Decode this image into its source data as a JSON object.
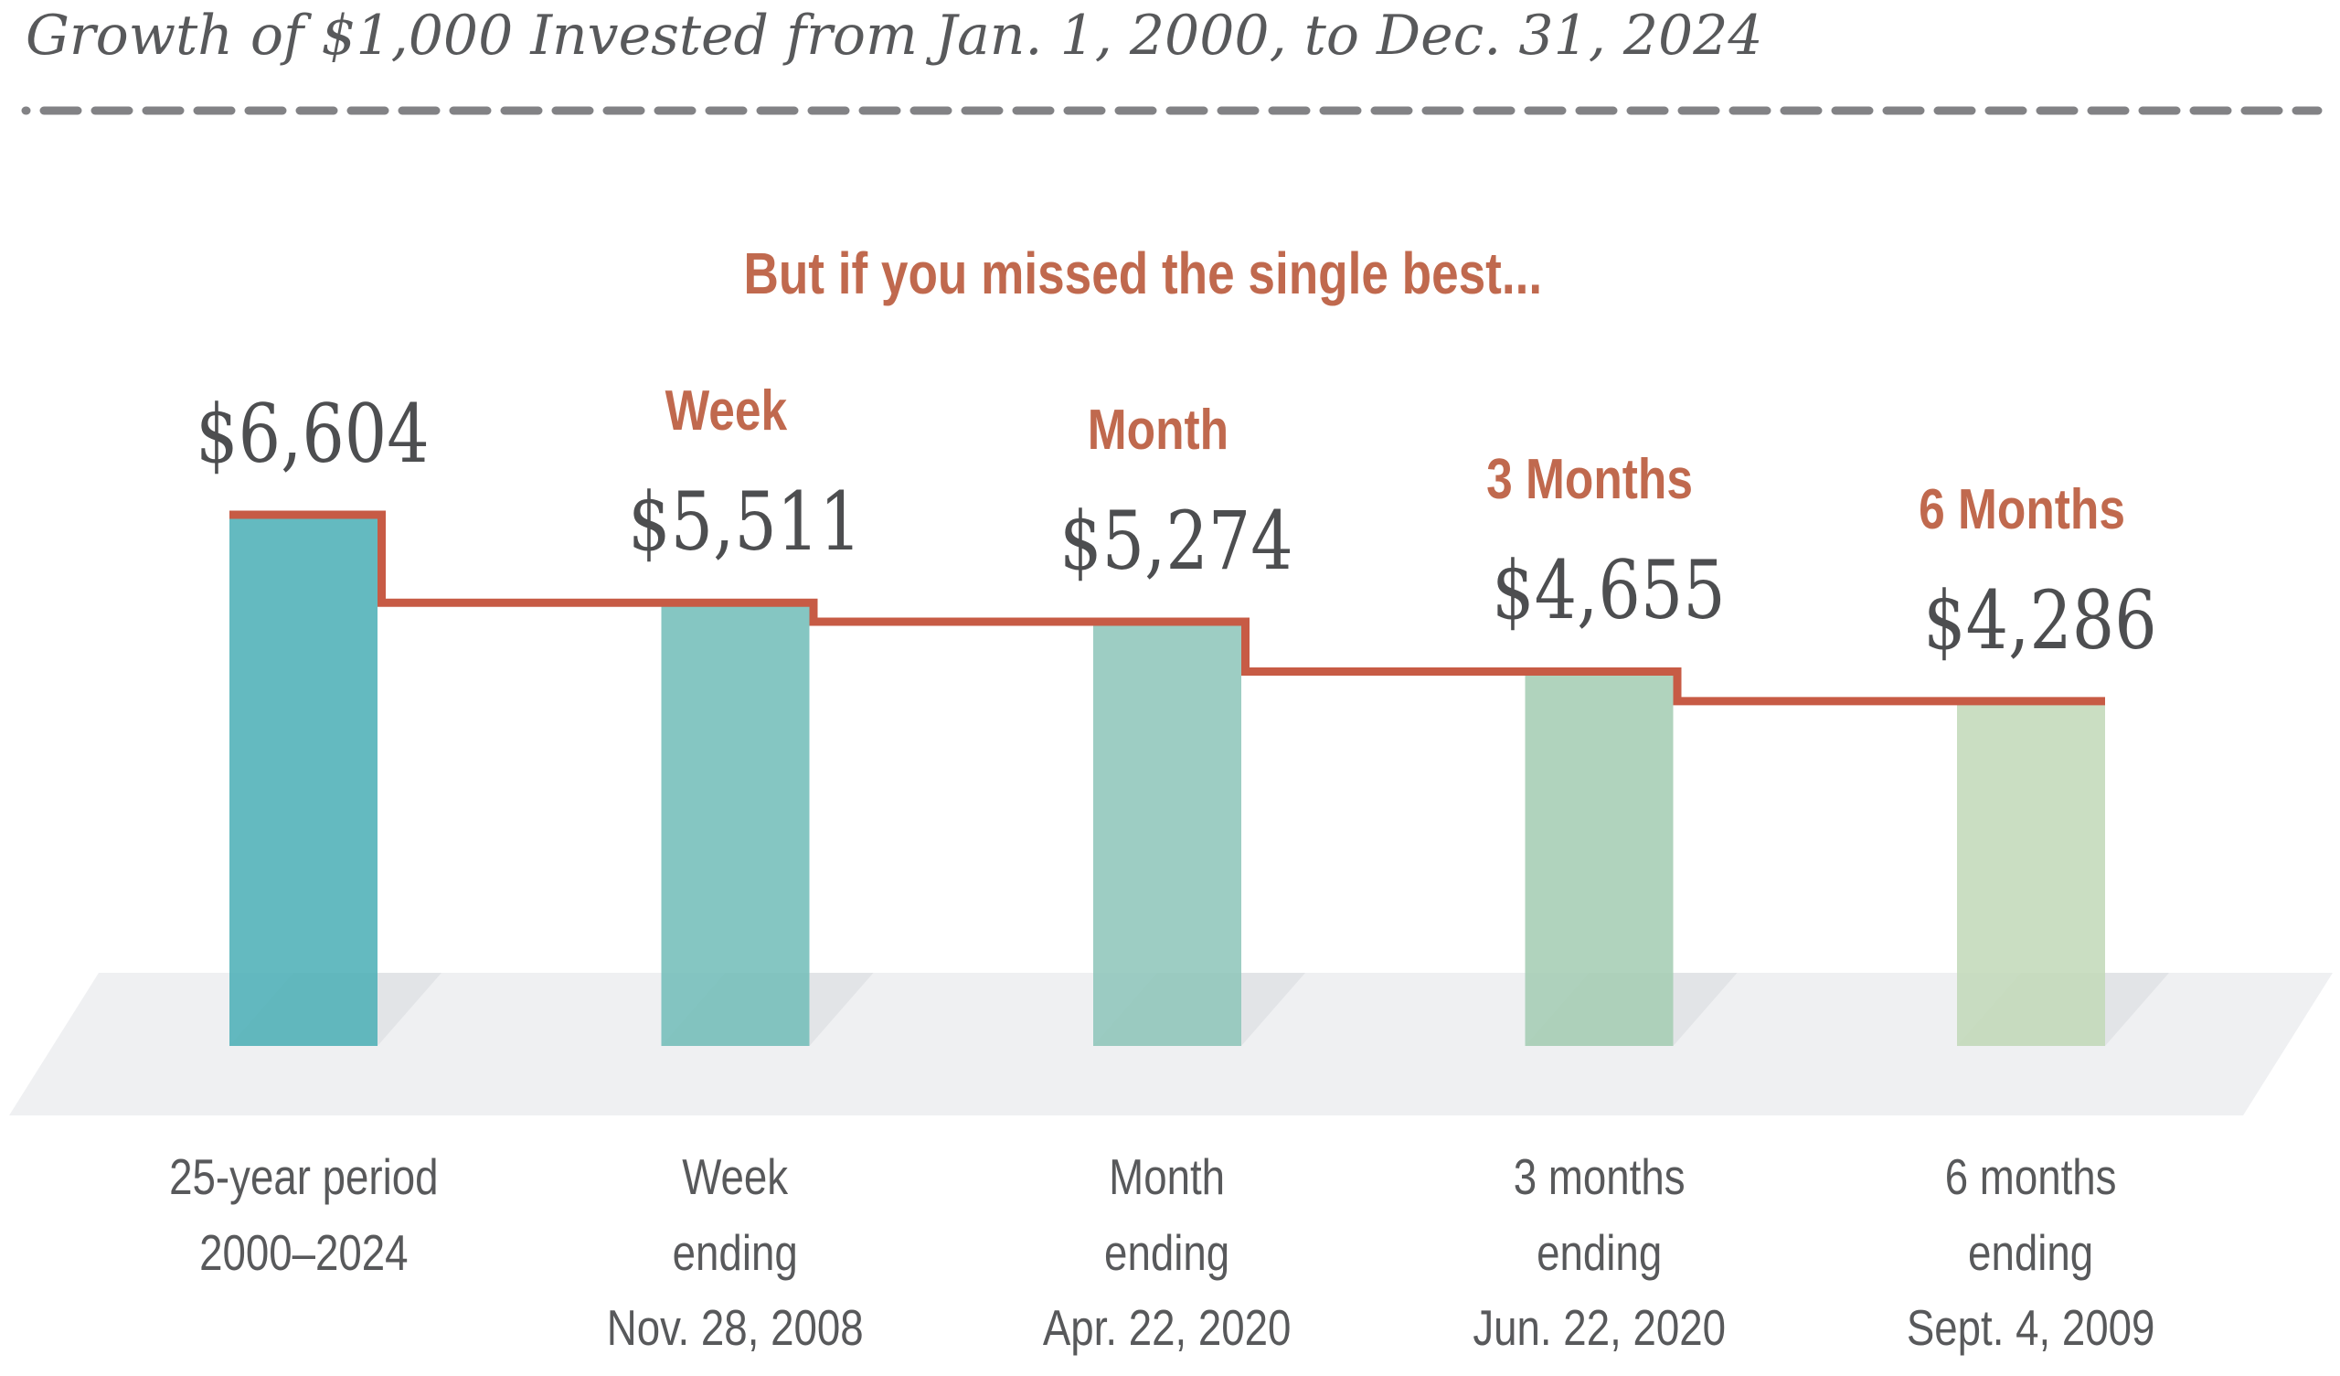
{
  "chart_data": {
    "type": "bar",
    "title": "Growth of $1,000 Invested from Jan. 1, 2000, to Dec. 31, 2024",
    "annotation": "But if you missed the single best...",
    "ylabel": "",
    "xlabel": "",
    "ylim": [
      0,
      6604
    ],
    "grid": false,
    "legend": "none",
    "bars": [
      {
        "header": null,
        "value": 6604,
        "value_label": "$6,604",
        "category_lines": [
          "25-year period",
          "2000–2024"
        ],
        "color": "#4DB0B7"
      },
      {
        "header": "Week",
        "value": 5511,
        "value_label": "$5,511",
        "category_lines": [
          "Week",
          "ending",
          "Nov. 28, 2008"
        ],
        "color": "#73BEB9"
      },
      {
        "header": "Month",
        "value": 5274,
        "value_label": "$5,274",
        "category_lines": [
          "Month",
          "ending",
          "Apr. 22, 2020"
        ],
        "color": "#8EC6BA"
      },
      {
        "header": "3 Months",
        "value": 4655,
        "value_label": "$4,655",
        "category_lines": [
          "3 months",
          "ending",
          "Jun. 22, 2020"
        ],
        "color": "#A4CDB3"
      },
      {
        "header": "6 Months",
        "value": 4286,
        "value_label": "$4,286",
        "category_lines": [
          "6 months",
          "ending",
          "Sept. 4, 2009"
        ],
        "color": "#C2D9B9"
      }
    ],
    "colors": {
      "step_line": "#C75B45",
      "annotation_text": "#C0694E",
      "value_text": "#4D4E50",
      "label_text": "#58595B",
      "title_text": "#58595B",
      "dashed_rule": "#828285",
      "floor": "#EFF0F2",
      "floor_shadow": "#E2E4E7",
      "background": "#FFFFFF"
    }
  }
}
